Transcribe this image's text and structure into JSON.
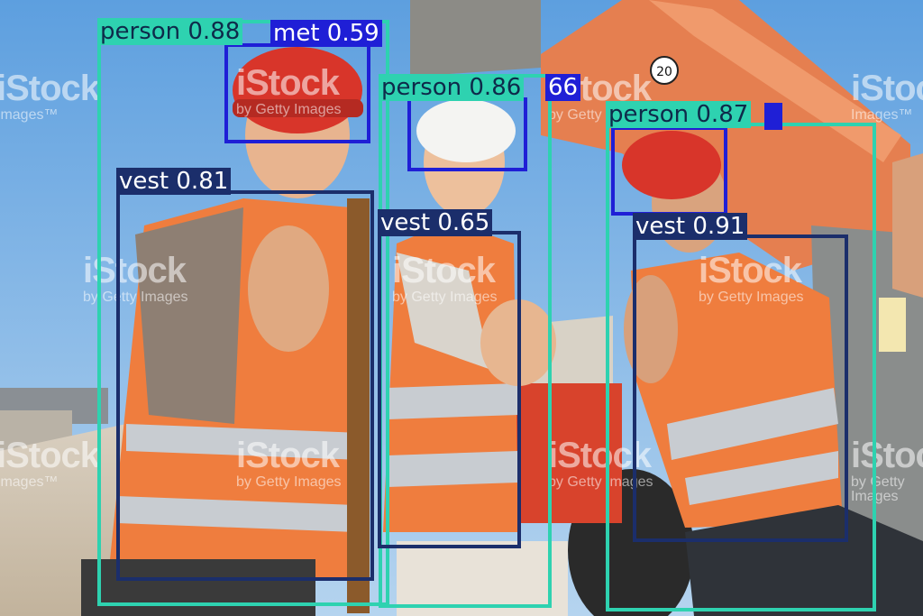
{
  "watermark": {
    "brand": "iStock",
    "sub": "by Getty Images",
    "tm": "Images™"
  },
  "colors": {
    "person": "#2ed2b0",
    "vest": "#1b2e6b",
    "helmet": "#1f1fd6",
    "sky": "#7fb3e6"
  },
  "detections": [
    {
      "id": "p1",
      "label": "person 0.88",
      "class": "person"
    },
    {
      "id": "h1",
      "label": "met 0.59",
      "class": "helmet"
    },
    {
      "id": "v1",
      "label": "vest 0.81",
      "class": "vest"
    },
    {
      "id": "p2",
      "label": "person 0.86",
      "class": "person"
    },
    {
      "id": "h2",
      "label": "66",
      "class": "helmet"
    },
    {
      "id": "v2",
      "label": "vest 0.65",
      "class": "vest"
    },
    {
      "id": "p3",
      "label": "person 0.87",
      "class": "person"
    },
    {
      "id": "h3",
      "label": "",
      "class": "helmet"
    },
    {
      "id": "v3",
      "label": "vest 0.91",
      "class": "vest"
    }
  ],
  "sign_number": "20"
}
